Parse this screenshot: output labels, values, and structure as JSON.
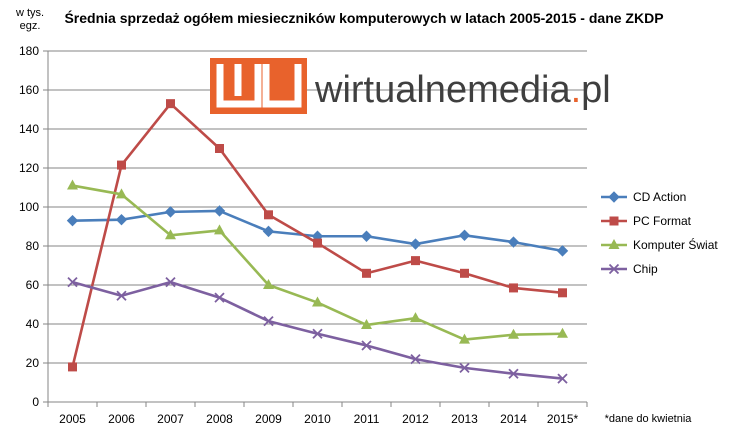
{
  "chart_data": {
    "type": "line",
    "title": "Średnia sprzedaż ogółem miesieczników komputerowych w latach  2005-2015  - dane ZKDP",
    "ylabel_lines": [
      "w tys.",
      "egz."
    ],
    "xlabel": "",
    "categories": [
      "2005",
      "2006",
      "2007",
      "2008",
      "2009",
      "2010",
      "2011",
      "2012",
      "2013",
      "2014",
      "2015*"
    ],
    "ylim": [
      0,
      180
    ],
    "yticks": [
      0,
      20,
      40,
      60,
      80,
      100,
      120,
      140,
      160,
      180
    ],
    "grid": true,
    "legend_position": "right",
    "series": [
      {
        "name": "CD Action",
        "color": "#4a7ebb",
        "marker": "diamond",
        "values": [
          93,
          93.5,
          97.5,
          98,
          87.5,
          85,
          85,
          81,
          85.5,
          82,
          77.5
        ]
      },
      {
        "name": "PC Format",
        "color": "#be4b48",
        "marker": "square",
        "values": [
          18,
          121.5,
          153,
          130,
          96,
          81.5,
          66,
          72.5,
          66,
          58.5,
          56
        ]
      },
      {
        "name": "Komputer Świat",
        "color": "#98b954",
        "marker": "triangle",
        "values": [
          111,
          106.5,
          85.5,
          88,
          60,
          51,
          39.5,
          43,
          32,
          34.5,
          35
        ]
      },
      {
        "name": "Chip",
        "color": "#7d60a0",
        "marker": "x",
        "values": [
          61.5,
          54.5,
          61.5,
          53.5,
          41.5,
          35,
          29,
          22,
          17.5,
          14.5,
          12
        ]
      }
    ],
    "note": "*dane do kwietnia"
  },
  "watermark": {
    "text_main": "wirtualnemedia",
    "text_dot": ".",
    "text_tld": "pl",
    "mark_color": "#e8622c"
  }
}
